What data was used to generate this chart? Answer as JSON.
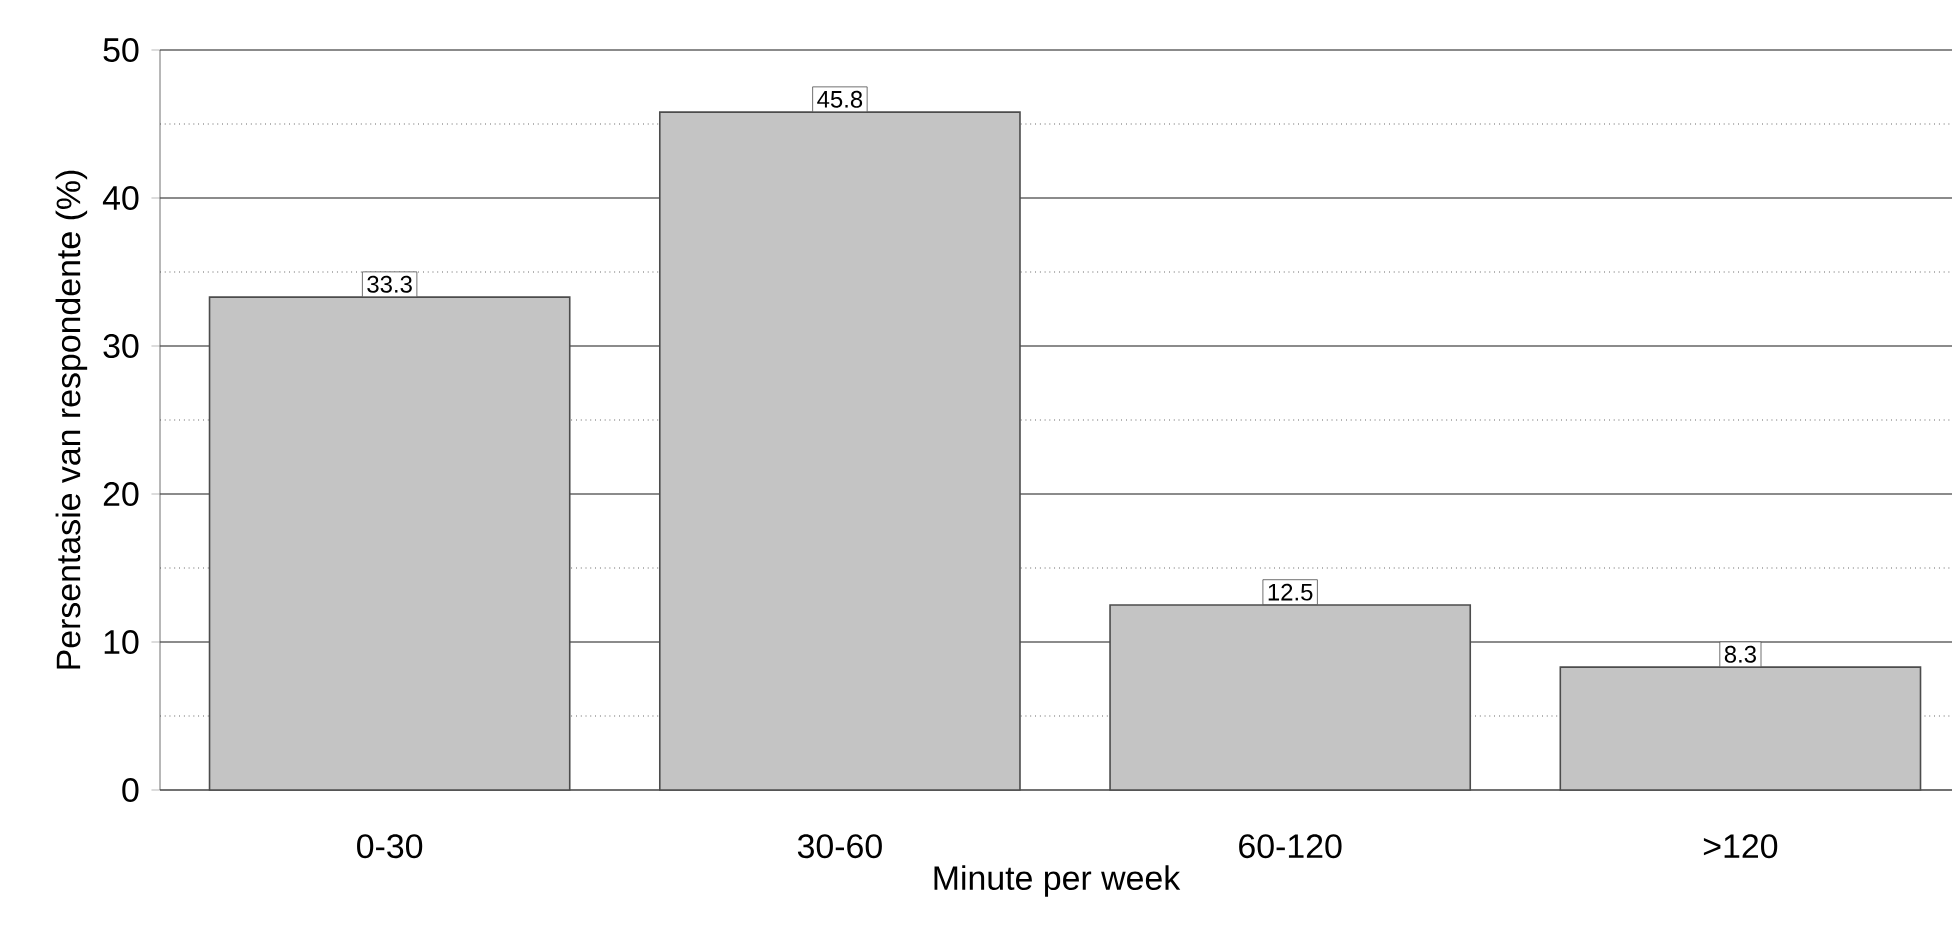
{
  "chart_data": {
    "type": "bar",
    "xlabel": "Minute per week",
    "ylabel": "Persentasie van respondente (%)",
    "categories": [
      "0-30",
      "30-60",
      "60-120",
      ">120"
    ],
    "values": [
      33.3,
      45.8,
      12.5,
      8.3
    ],
    "color": "#c4c4c4",
    "ylim": [
      0,
      50
    ],
    "yticks": [
      0,
      10,
      20,
      30,
      40,
      50
    ],
    "grid": "y",
    "data_labels": true
  }
}
